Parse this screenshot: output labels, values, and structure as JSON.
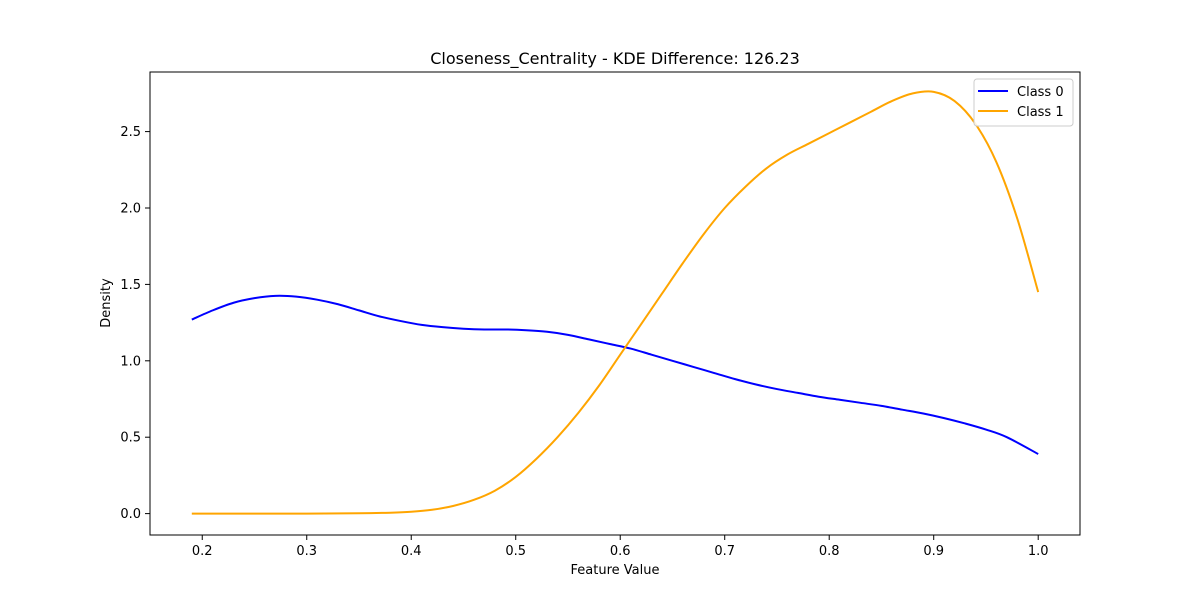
{
  "chart_data": {
    "type": "line",
    "title": "Closeness_Centrality - KDE Difference: 126.23",
    "xlabel": "Feature Value",
    "ylabel": "Density",
    "xlim": [
      0.15,
      1.04
    ],
    "ylim": [
      -0.14,
      2.89
    ],
    "xticks": [
      0.2,
      0.3,
      0.4,
      0.5,
      0.6,
      0.7,
      0.8,
      0.9,
      1.0
    ],
    "xtick_labels": [
      "0.2",
      "0.3",
      "0.4",
      "0.5",
      "0.6",
      "0.7",
      "0.8",
      "0.9",
      "1.0"
    ],
    "yticks": [
      0.0,
      0.5,
      1.0,
      1.5,
      2.0,
      2.5
    ],
    "ytick_labels": [
      "0.0",
      "0.5",
      "1.0",
      "1.5",
      "2.0",
      "2.5"
    ],
    "grid": false,
    "legend_position": "top-right",
    "series": [
      {
        "name": "Class 0",
        "color": "#0000ff",
        "x": [
          0.19,
          0.21,
          0.23,
          0.25,
          0.27,
          0.29,
          0.31,
          0.33,
          0.35,
          0.37,
          0.39,
          0.41,
          0.43,
          0.45,
          0.47,
          0.49,
          0.51,
          0.53,
          0.55,
          0.57,
          0.59,
          0.61,
          0.63,
          0.65,
          0.67,
          0.69,
          0.71,
          0.73,
          0.75,
          0.77,
          0.79,
          0.81,
          0.83,
          0.85,
          0.87,
          0.89,
          0.91,
          0.93,
          0.95,
          0.97,
          1.0
        ],
        "values": [
          1.27,
          1.33,
          1.38,
          1.41,
          1.425,
          1.42,
          1.4,
          1.37,
          1.33,
          1.29,
          1.26,
          1.235,
          1.22,
          1.21,
          1.205,
          1.205,
          1.2,
          1.19,
          1.17,
          1.14,
          1.11,
          1.08,
          1.04,
          1.0,
          0.96,
          0.92,
          0.88,
          0.845,
          0.815,
          0.79,
          0.765,
          0.745,
          0.725,
          0.705,
          0.68,
          0.655,
          0.625,
          0.59,
          0.55,
          0.5,
          0.39
        ]
      },
      {
        "name": "Class 1",
        "color": "#ffa500",
        "x": [
          0.19,
          0.25,
          0.3,
          0.35,
          0.38,
          0.4,
          0.42,
          0.44,
          0.46,
          0.48,
          0.5,
          0.52,
          0.54,
          0.56,
          0.58,
          0.6,
          0.62,
          0.64,
          0.66,
          0.68,
          0.7,
          0.72,
          0.74,
          0.76,
          0.78,
          0.8,
          0.82,
          0.84,
          0.86,
          0.88,
          0.9,
          0.92,
          0.94,
          0.96,
          0.98,
          1.0
        ],
        "values": [
          0.0,
          0.0,
          0.0,
          0.002,
          0.006,
          0.012,
          0.025,
          0.05,
          0.09,
          0.15,
          0.24,
          0.36,
          0.5,
          0.66,
          0.84,
          1.04,
          1.24,
          1.44,
          1.64,
          1.83,
          2.0,
          2.14,
          2.26,
          2.35,
          2.42,
          2.49,
          2.56,
          2.63,
          2.7,
          2.75,
          2.76,
          2.7,
          2.55,
          2.3,
          1.93,
          1.45
        ]
      }
    ]
  }
}
